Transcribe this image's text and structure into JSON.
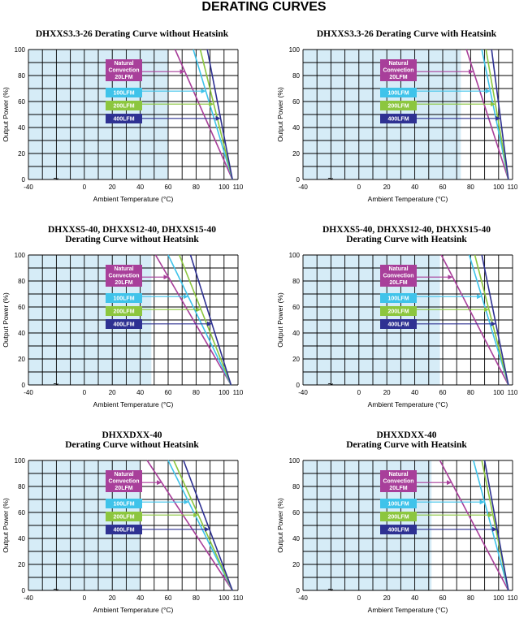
{
  "page_title": "DERATING CURVES",
  "colors": {
    "natural": "#a83f9a",
    "lfm100": "#3fc3ea",
    "lfm200": "#8cc63f",
    "lfm400": "#2e3192",
    "shade": "#d6ecf7",
    "grid": "#000000"
  },
  "chart_data": [
    {
      "type": "line",
      "title_lines": [
        "DHXXS3.3-26 Derating Curve without Heatsink"
      ],
      "xlabel": "Ambient Temperature (°C)",
      "ylabel": "Output Power (%)",
      "xlim": [
        -40,
        110
      ],
      "ylim": [
        0,
        100
      ],
      "xticks": [
        "-40",
        "0",
        "20",
        "40",
        "60",
        "80",
        "100",
        "110"
      ],
      "yticks": [
        "0",
        "20",
        "40",
        "60",
        "80",
        "100"
      ],
      "shaded_until": 60,
      "legend": [
        {
          "lines": [
            "Natural",
            "Convection",
            "20LFM"
          ],
          "color": "natural"
        },
        {
          "lines": [
            "100LFM"
          ],
          "color": "lfm100"
        },
        {
          "lines": [
            "200LFM"
          ],
          "color": "lfm200"
        },
        {
          "lines": [
            "400LFM"
          ],
          "color": "lfm400"
        }
      ],
      "series": [
        {
          "name": "Natural Convection 20LFM",
          "color": "natural",
          "x": [
            65,
            106
          ],
          "y": [
            100,
            0
          ]
        },
        {
          "name": "100LFM",
          "color": "lfm100",
          "x": [
            78,
            106
          ],
          "y": [
            100,
            0
          ]
        },
        {
          "name": "200LFM",
          "color": "lfm200",
          "x": [
            83,
            106
          ],
          "y": [
            100,
            0
          ]
        },
        {
          "name": "400LFM",
          "color": "lfm400",
          "x": [
            88,
            106
          ],
          "y": [
            100,
            0
          ]
        }
      ]
    },
    {
      "type": "line",
      "title_lines": [
        "DHXXS3.3-26 Derating Curve with Heatsink"
      ],
      "xlabel": "Ambient Temperature (°C)",
      "ylabel": "Output Power (%)",
      "xlim": [
        -40,
        110
      ],
      "ylim": [
        0,
        100
      ],
      "xticks": [
        "-40",
        "0",
        "20",
        "40",
        "60",
        "80",
        "100",
        "110"
      ],
      "yticks": [
        "0",
        "20",
        "40",
        "60",
        "80",
        "100"
      ],
      "shaded_until": 73,
      "legend": [
        {
          "lines": [
            "Natural",
            "Convection",
            "20LFM"
          ],
          "color": "natural"
        },
        {
          "lines": [
            "100LFM"
          ],
          "color": "lfm100"
        },
        {
          "lines": [
            "200LFM"
          ],
          "color": "lfm200"
        },
        {
          "lines": [
            "400LFM"
          ],
          "color": "lfm400"
        }
      ],
      "series": [
        {
          "name": "Natural Convection 20LFM",
          "color": "natural",
          "x": [
            77,
            107
          ],
          "y": [
            100,
            0
          ]
        },
        {
          "name": "100LFM",
          "color": "lfm100",
          "x": [
            88,
            107
          ],
          "y": [
            100,
            0
          ]
        },
        {
          "name": "200LFM",
          "color": "lfm200",
          "x": [
            91,
            107
          ],
          "y": [
            100,
            0
          ]
        },
        {
          "name": "400LFM",
          "color": "lfm400",
          "x": [
            95,
            107
          ],
          "y": [
            100,
            0
          ]
        }
      ]
    },
    {
      "type": "line",
      "title_lines": [
        "DHXXS5-40, DHXXS12-40, DHXXS15-40",
        "Derating Curve without Heatsink"
      ],
      "xlabel": "Ambient Temperature (°C)",
      "ylabel": "Output Power (%)",
      "xlim": [
        -40,
        110
      ],
      "ylim": [
        0,
        100
      ],
      "xticks": [
        "-40",
        "0",
        "20",
        "40",
        "60",
        "80",
        "100",
        "110"
      ],
      "yticks": [
        "0",
        "20",
        "40",
        "60",
        "80",
        "100"
      ],
      "shaded_until": 48,
      "legend": [
        {
          "lines": [
            "Natural",
            "Convection",
            "20LFM"
          ],
          "color": "natural"
        },
        {
          "lines": [
            "100LFM"
          ],
          "color": "lfm100"
        },
        {
          "lines": [
            "200LFM"
          ],
          "color": "lfm200"
        },
        {
          "lines": [
            "400LFM"
          ],
          "color": "lfm400"
        }
      ],
      "series": [
        {
          "name": "Natural Convection 20LFM",
          "color": "natural",
          "x": [
            51,
            105
          ],
          "y": [
            100,
            0
          ]
        },
        {
          "name": "100LFM",
          "color": "lfm100",
          "x": [
            60,
            105
          ],
          "y": [
            100,
            0
          ]
        },
        {
          "name": "200LFM",
          "color": "lfm200",
          "x": [
            68,
            105
          ],
          "y": [
            100,
            0
          ]
        },
        {
          "name": "400LFM",
          "color": "lfm400",
          "x": [
            76,
            105
          ],
          "y": [
            100,
            0
          ]
        }
      ]
    },
    {
      "type": "line",
      "title_lines": [
        "DHXXS5-40, DHXXS12-40, DHXXS15-40",
        "Derating Curve with Heatsink"
      ],
      "xlabel": "Ambient Temperature (°C)",
      "ylabel": "Output Power (%)",
      "xlim": [
        -40,
        110
      ],
      "ylim": [
        0,
        100
      ],
      "xticks": [
        "-40",
        "0",
        "20",
        "40",
        "60",
        "80",
        "100",
        "110"
      ],
      "yticks": [
        "0",
        "20",
        "40",
        "60",
        "80",
        "100"
      ],
      "shaded_until": 58,
      "legend": [
        {
          "lines": [
            "Natural",
            "Convection",
            "20LFM"
          ],
          "color": "natural"
        },
        {
          "lines": [
            "100LFM"
          ],
          "color": "lfm100"
        },
        {
          "lines": [
            "200LFM"
          ],
          "color": "lfm200"
        },
        {
          "lines": [
            "400LFM"
          ],
          "color": "lfm400"
        }
      ],
      "series": [
        {
          "name": "Natural Convection 20LFM",
          "color": "natural",
          "x": [
            59,
            107
          ],
          "y": [
            100,
            0
          ]
        },
        {
          "name": "100LFM",
          "color": "lfm100",
          "x": [
            79,
            107
          ],
          "y": [
            100,
            0
          ]
        },
        {
          "name": "200LFM",
          "color": "lfm200",
          "x": [
            83,
            107
          ],
          "y": [
            100,
            0
          ]
        },
        {
          "name": "400LFM",
          "color": "lfm400",
          "x": [
            88,
            107
          ],
          "y": [
            100,
            0
          ]
        }
      ]
    },
    {
      "type": "line",
      "title_lines": [
        "DHXXDXX-40",
        "Derating Curve without Heatsink"
      ],
      "xlabel": "Ambient Temperature (°C)",
      "ylabel": "Output Power (%)",
      "xlim": [
        -40,
        110
      ],
      "ylim": [
        0,
        100
      ],
      "xticks": [
        "-40",
        "0",
        "20",
        "40",
        "60",
        "80",
        "100",
        "110"
      ],
      "yticks": [
        "0",
        "20",
        "40",
        "60",
        "80",
        "100"
      ],
      "shaded_until": 40,
      "legend": [
        {
          "lines": [
            "Natural",
            "Convection",
            "20LFM"
          ],
          "color": "natural"
        },
        {
          "lines": [
            "100LFM"
          ],
          "color": "lfm100"
        },
        {
          "lines": [
            "200LFM"
          ],
          "color": "lfm200"
        },
        {
          "lines": [
            "400LFM"
          ],
          "color": "lfm400"
        }
      ],
      "series": [
        {
          "name": "Natural Convection 20LFM",
          "color": "natural",
          "x": [
            45,
            106
          ],
          "y": [
            100,
            0
          ]
        },
        {
          "name": "100LFM",
          "color": "lfm100",
          "x": [
            60,
            106
          ],
          "y": [
            100,
            0
          ]
        },
        {
          "name": "200LFM",
          "color": "lfm200",
          "x": [
            64,
            106
          ],
          "y": [
            100,
            0
          ]
        },
        {
          "name": "400LFM",
          "color": "lfm400",
          "x": [
            71,
            106
          ],
          "y": [
            100,
            0
          ]
        }
      ]
    },
    {
      "type": "line",
      "title_lines": [
        "DHXXDXX-40",
        "Derating Curve with Heatsink"
      ],
      "xlabel": "Ambient Temperature (°C)",
      "ylabel": "Output Power (%)",
      "xlim": [
        -40,
        110
      ],
      "ylim": [
        0,
        100
      ],
      "xticks": [
        "-40",
        "0",
        "20",
        "40",
        "60",
        "80",
        "100",
        "110"
      ],
      "yticks": [
        "0",
        "20",
        "40",
        "60",
        "80",
        "100"
      ],
      "shaded_until": 52,
      "legend": [
        {
          "lines": [
            "Natural",
            "Convection",
            "20LFM"
          ],
          "color": "natural"
        },
        {
          "lines": [
            "100LFM"
          ],
          "color": "lfm100"
        },
        {
          "lines": [
            "200LFM"
          ],
          "color": "lfm200"
        },
        {
          "lines": [
            "400LFM"
          ],
          "color": "lfm400"
        }
      ],
      "series": [
        {
          "name": "Natural Convection 20LFM",
          "color": "natural",
          "x": [
            58,
            107
          ],
          "y": [
            100,
            0
          ]
        },
        {
          "name": "100LFM",
          "color": "lfm100",
          "x": [
            82,
            107
          ],
          "y": [
            100,
            0
          ]
        },
        {
          "name": "200LFM",
          "color": "lfm200",
          "x": [
            88,
            107
          ],
          "y": [
            100,
            0
          ]
        },
        {
          "name": "400LFM",
          "color": "lfm400",
          "x": [
            90,
            107
          ],
          "y": [
            100,
            0
          ]
        }
      ]
    }
  ]
}
